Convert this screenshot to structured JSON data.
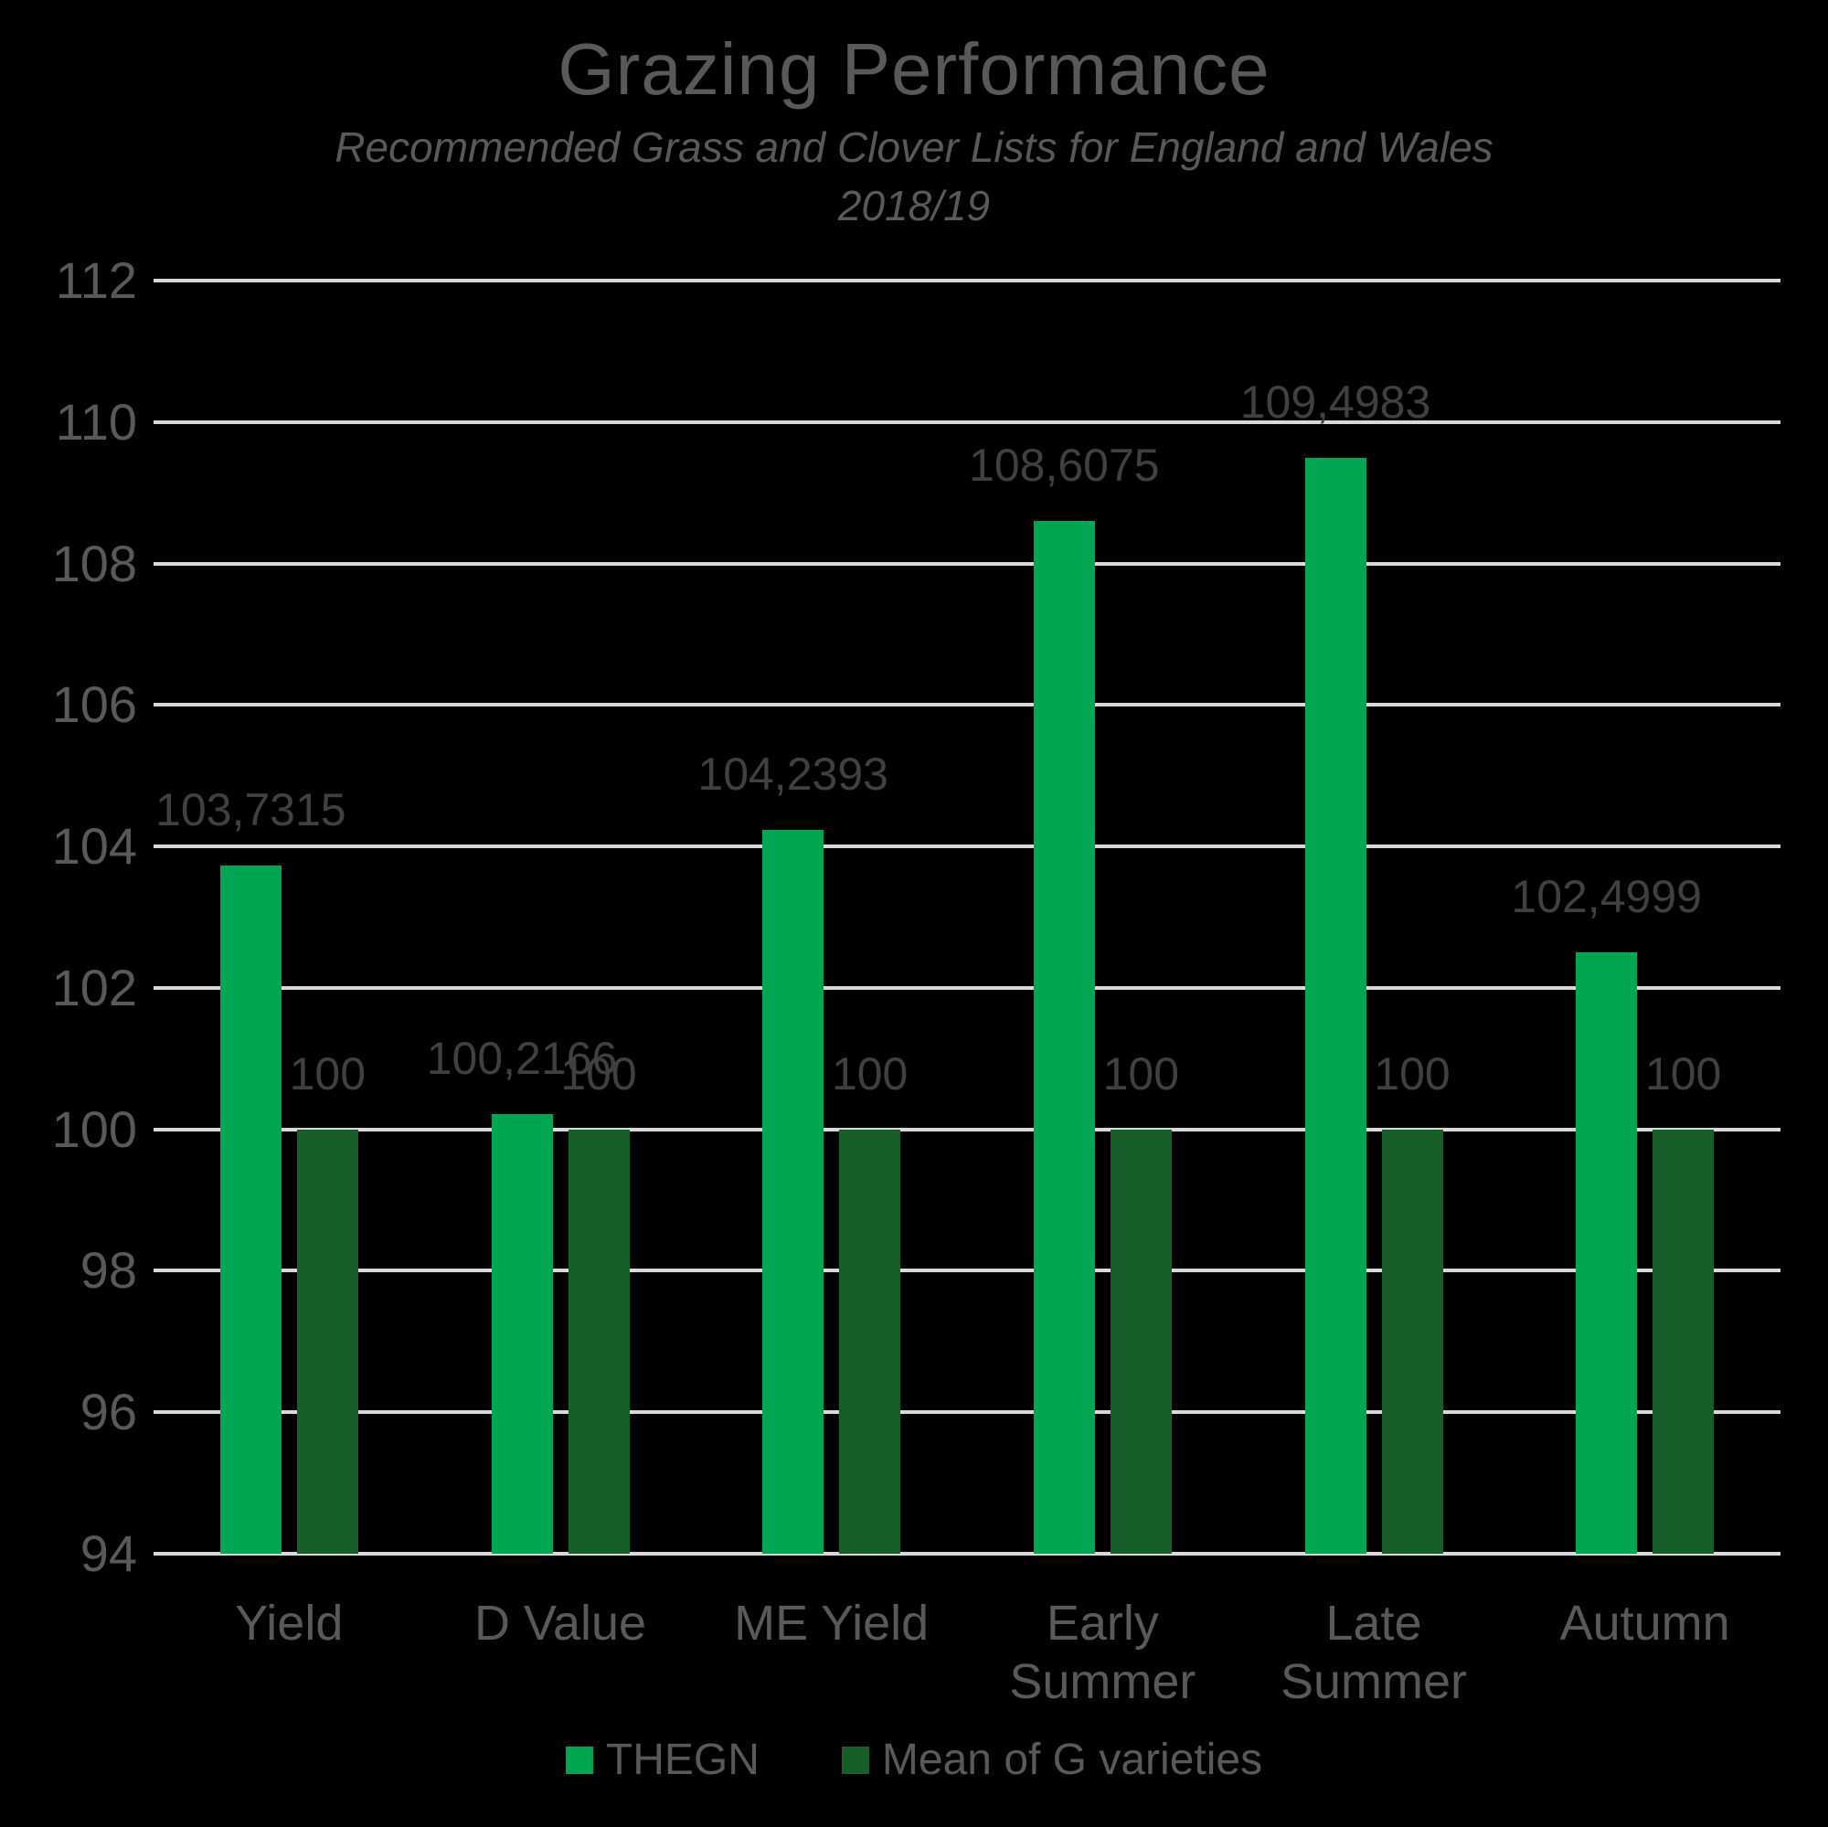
{
  "title": "Grazing Performance",
  "subtitle_line1": "Recommended Grass and Clover Lists for England and Wales",
  "subtitle_line2": "2018/19",
  "colors": {
    "background": "#000000",
    "gridline": "#D9D9D9",
    "title_text": "#595959",
    "axis_text": "#595959",
    "data_label_text": "#404040",
    "thegn_green": "#00A651",
    "mean_green": "#175E2B"
  },
  "chart_data": {
    "type": "bar",
    "title": "Grazing Performance",
    "subtitle": "Recommended Grass and Clover Lists for England and Wales 2018/19",
    "categories": [
      "Yield",
      "D Value",
      "ME Yield",
      "Early Summer",
      "Late Summer",
      "Autumn"
    ],
    "series": [
      {
        "name": "THEGN",
        "color_key": "thegn_green",
        "values": [
          103.7315,
          100.2166,
          104.2393,
          108.6075,
          109.4983,
          102.4999
        ],
        "labels": [
          "103,7315",
          "100,2166",
          "104,2393",
          "108,6075",
          "109,4983",
          "102,4999"
        ]
      },
      {
        "name": "Mean of G varieties",
        "color_key": "mean_green",
        "values": [
          100,
          100,
          100,
          100,
          100,
          100
        ],
        "labels": [
          "100",
          "100",
          "100",
          "100",
          "100",
          "100"
        ]
      }
    ],
    "ylim": [
      94,
      112
    ],
    "yticks": [
      94,
      96,
      98,
      100,
      102,
      104,
      106,
      108,
      110,
      112
    ],
    "grid": true,
    "legend_position": "bottom"
  },
  "legend": {
    "items": [
      {
        "label": "THEGN"
      },
      {
        "label": "Mean of G varieties"
      }
    ]
  }
}
